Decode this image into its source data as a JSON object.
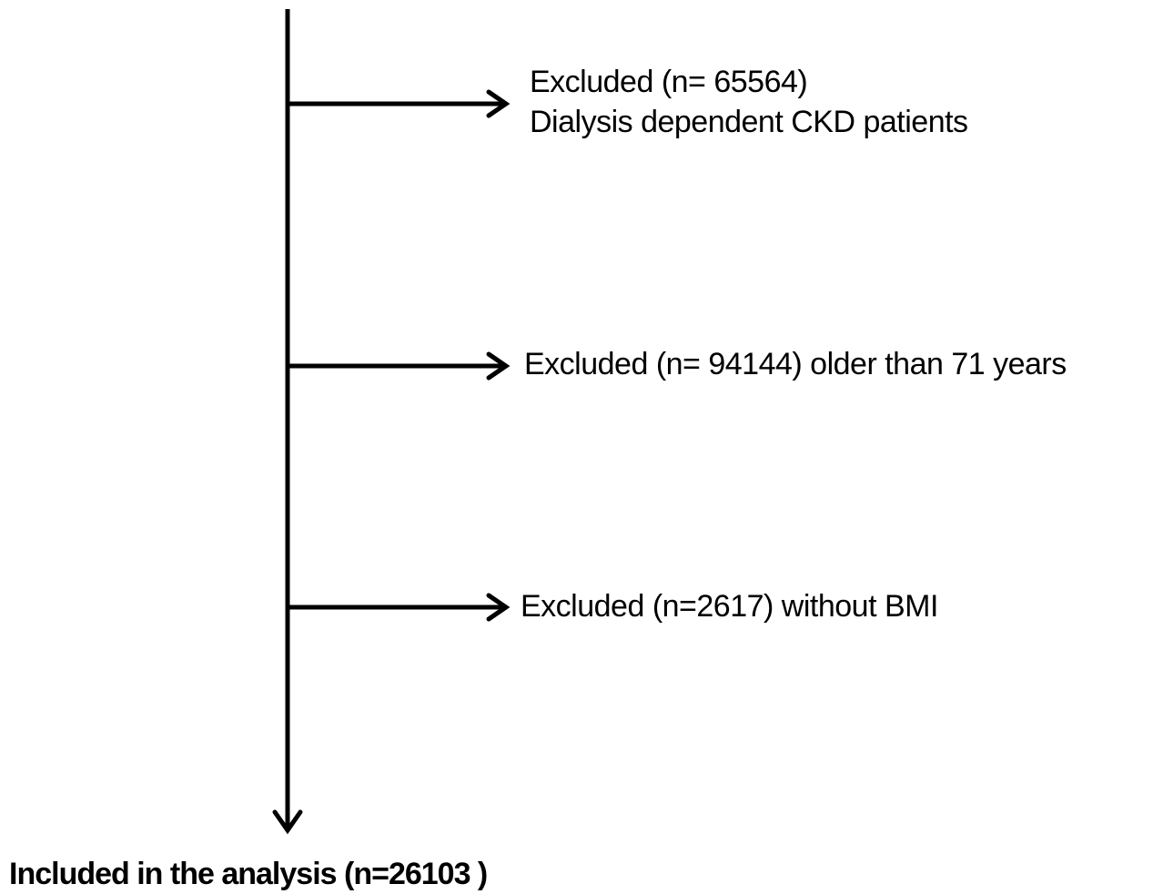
{
  "flowchart": {
    "exclusions": [
      {
        "lines": [
          "Excluded (n= 65564)",
          "Dialysis dependent CKD patients"
        ]
      },
      {
        "lines": [
          "Excluded (n= 94144) older than 71 years"
        ]
      },
      {
        "lines": [
          "Excluded (n=2617) without  BMI"
        ]
      }
    ],
    "final": {
      "label": "Included in the analysis (n=26103 )"
    },
    "colors": {
      "line": "#000000",
      "text": "#000000",
      "background": "#ffffff"
    }
  }
}
